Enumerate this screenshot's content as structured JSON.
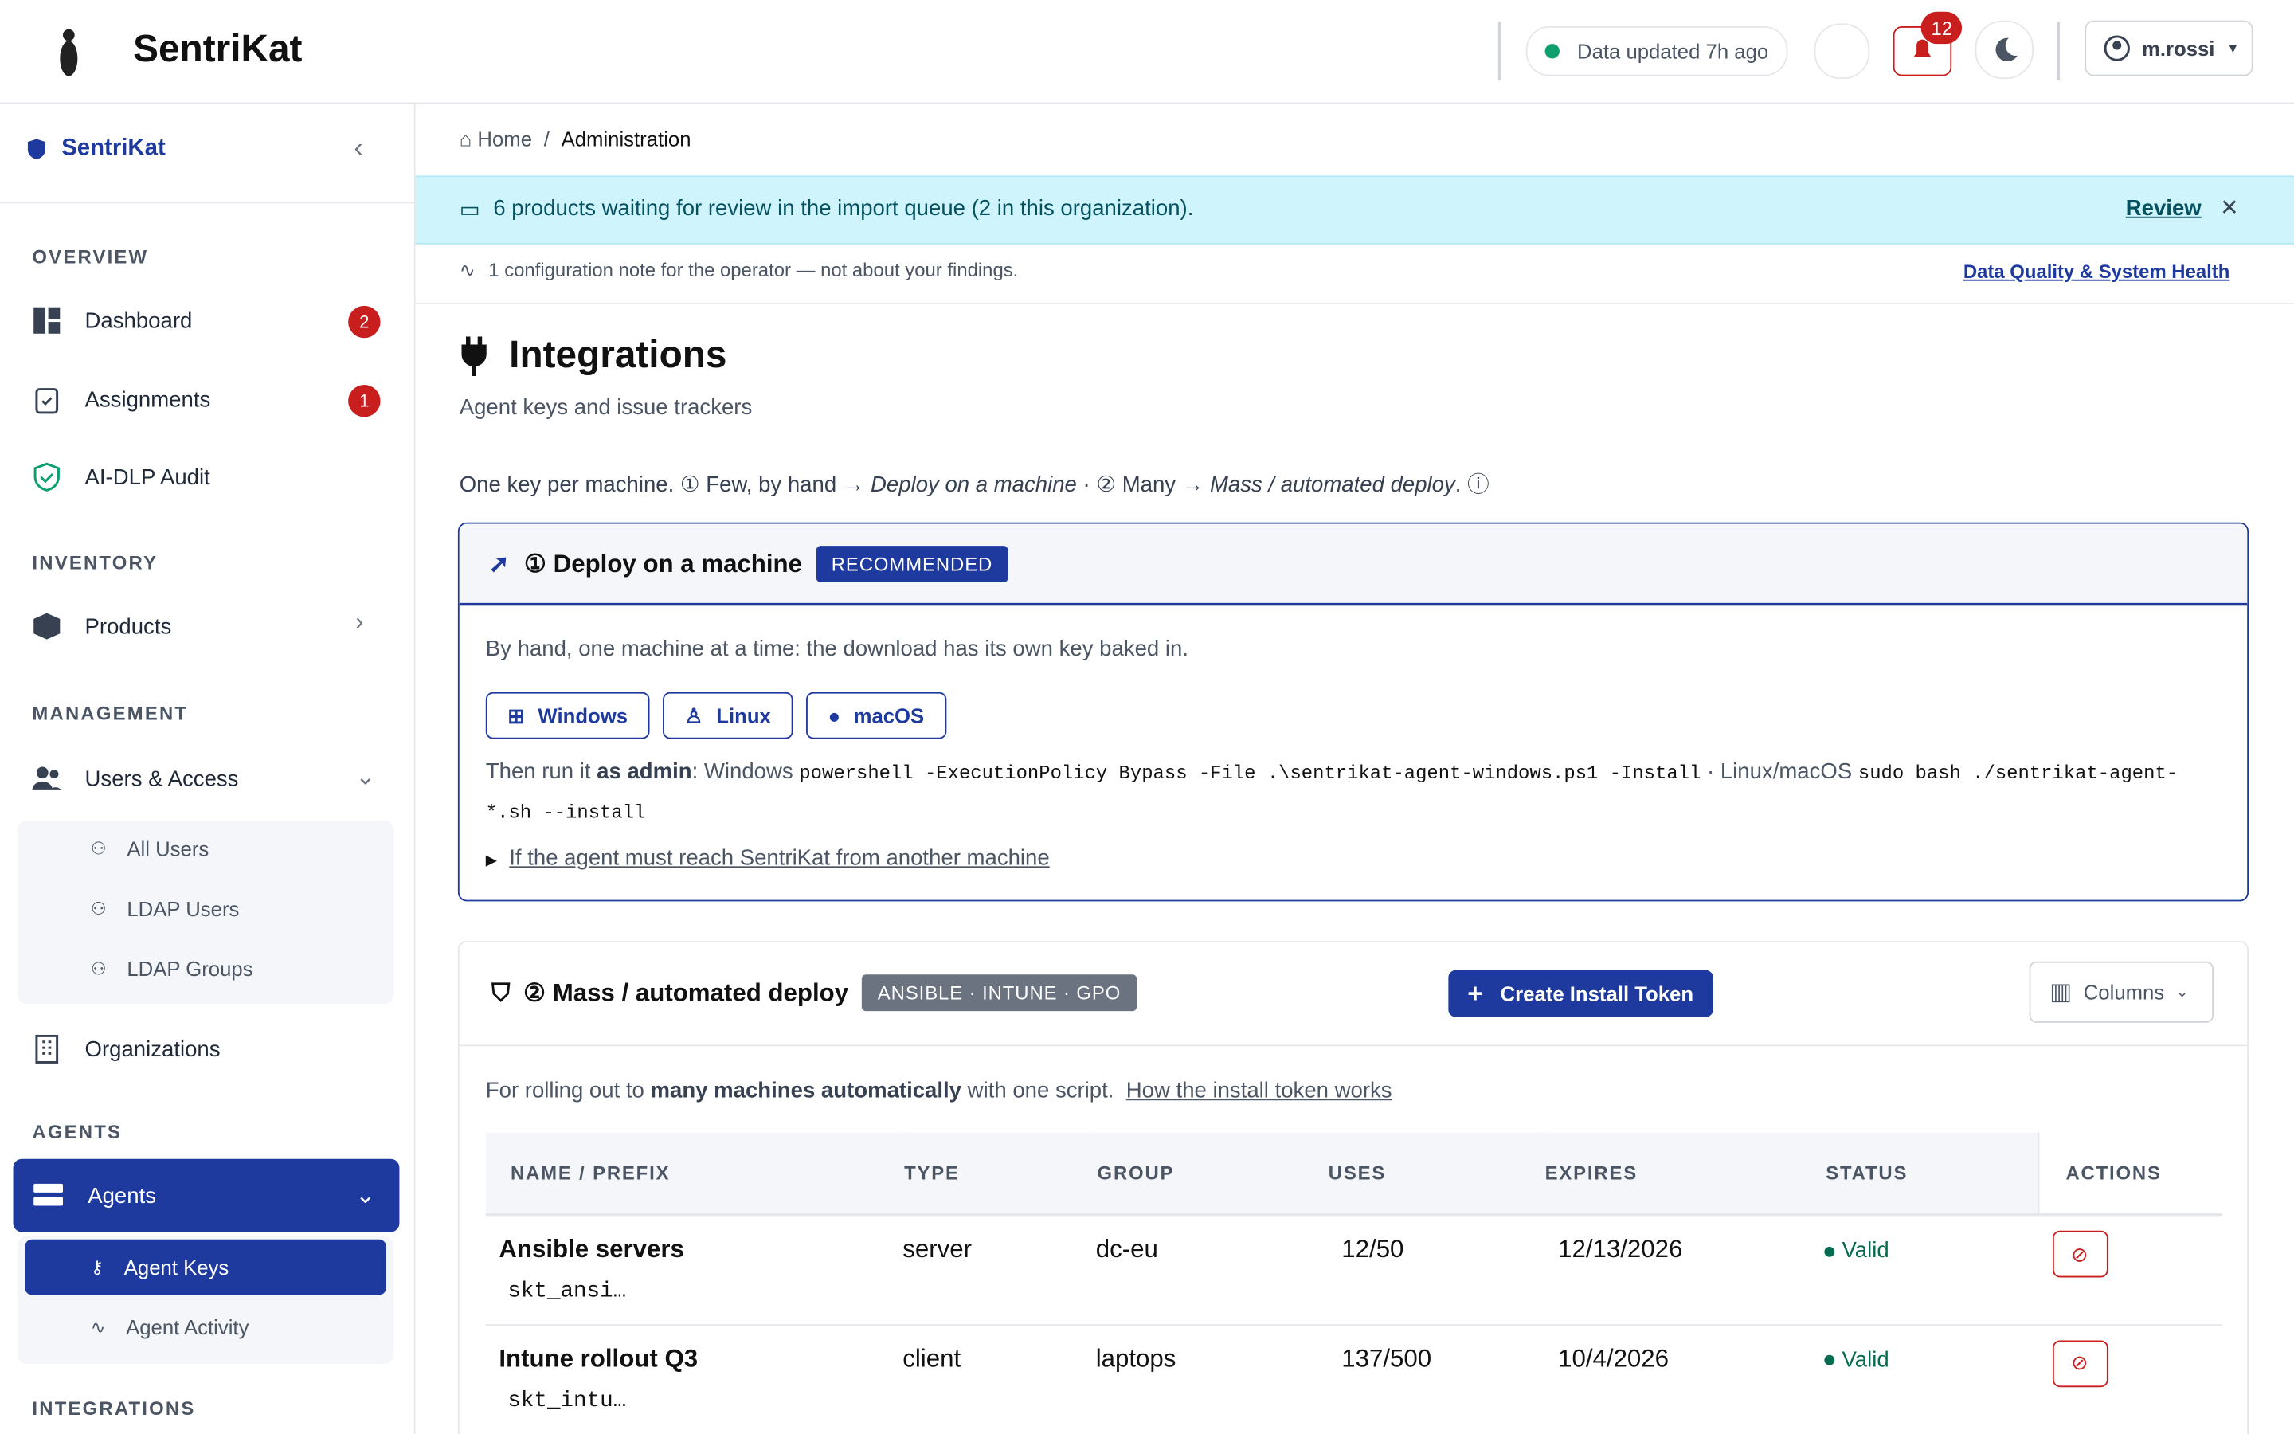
{
  "header": {
    "brand": "SentriKat",
    "status": "Data updated 7h ago",
    "notifications": "12",
    "user": "m.rossi"
  },
  "sidebar": {
    "brand": "SentriKat",
    "sections": [
      {
        "title": "OVERVIEW",
        "items": [
          {
            "label": "Dashboard",
            "badge": "2"
          },
          {
            "label": "Assignments",
            "badge": "1"
          },
          {
            "label": "AI-DLP Audit"
          }
        ]
      },
      {
        "title": "INVENTORY",
        "items": [
          {
            "label": "Products"
          }
        ]
      },
      {
        "title": "MANAGEMENT",
        "items": [
          {
            "label": "Users & Access",
            "children": [
              "All Users",
              "LDAP Users",
              "LDAP Groups"
            ]
          },
          {
            "label": "Organizations"
          }
        ]
      },
      {
        "title": "AGENTS",
        "items": [
          {
            "label": "Agents",
            "children": [
              "Agent Keys",
              "Agent Activity"
            ]
          }
        ]
      },
      {
        "title": "INTEGRATIONS",
        "items": []
      }
    ]
  },
  "breadcrumb": [
    "Home",
    "Administration"
  ],
  "banner": {
    "text": "6 products waiting for review in the import queue (2 in this organization).",
    "action": "Review"
  },
  "note": {
    "text": "1 configuration note for the operator — not about your findings.",
    "link": "Data Quality & System Health"
  },
  "page": {
    "title": "Integrations",
    "subtitle": "Agent keys and issue trackers",
    "intro": [
      "One key per machine. ① Few, by hand → ",
      "Deploy on a machine",
      " · ② Many → ",
      "Mass / automated deploy",
      "."
    ]
  },
  "deploy": {
    "title": "① Deploy on a machine",
    "badge": "RECOMMENDED",
    "description": "By hand, one machine at a time: the download has its own key baked in.",
    "buttons": [
      "Windows",
      "Linux",
      "macOS"
    ],
    "run": [
      "Then run it ",
      "as admin",
      ": Windows ",
      "powershell -ExecutionPolicy Bypass -File .\\sentrikat-agent-windows.ps1 -Install",
      " · Linux/macOS ",
      "sudo bash ./sentrikat-agent-*.sh --install"
    ],
    "details": "If the agent must reach SentriKat from another machine"
  },
  "mass": {
    "title": "② Mass / automated deploy",
    "badge": "ANSIBLE · INTUNE · GPO",
    "button": "Create Install Token",
    "columns": "Columns",
    "description": [
      "For rolling out to ",
      "many machines automatically",
      " with one script."
    ],
    "link": "How the install token works",
    "table": {
      "headers": [
        "NAME / PREFIX",
        "TYPE",
        "GROUP",
        "USES",
        "EXPIRES",
        "STATUS",
        "ACTIONS"
      ],
      "rows": [
        [
          "Ansible servers",
          "skt_ansi…",
          "server",
          "dc-eu",
          "12/50",
          "12/13/2026",
          "Valid"
        ],
        [
          "Intune rollout Q3",
          "skt_intu…",
          "client",
          "laptops",
          "137/500",
          "10/4/2026",
          "Valid"
        ]
      ]
    }
  }
}
